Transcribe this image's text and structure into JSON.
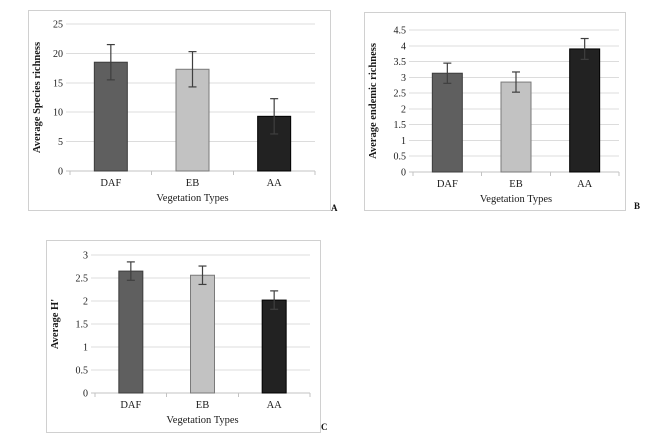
{
  "figure": {
    "background": "#ffffff",
    "panel_border_color": "#d0d0d0",
    "text_color": "#1a1a1a",
    "gridline_color": "#dcdcdc",
    "axis_color": "#c3c3c3",
    "error_bar_color": "#3f3f3f"
  },
  "chart_data": [
    {
      "type": "bar",
      "panel_label": "A",
      "ylabel": "Average Species richness",
      "xlabel": "Vegetation Types",
      "categories": [
        "DAF",
        "EB",
        "AA"
      ],
      "values": [
        18.5,
        17.3,
        9.3
      ],
      "errors": [
        3.0,
        3.0,
        3.0
      ],
      "ylim": [
        0,
        25
      ],
      "yticks": [
        "0",
        "5",
        "10",
        "15",
        "20",
        "25"
      ],
      "grid": true,
      "legend": "none",
      "bar_fills": [
        "#5f5f5f",
        "#c2c2c2",
        "#222222"
      ],
      "bar_strokes": [
        "#3d3d3d",
        "#7a7a7a",
        "#000000"
      ]
    },
    {
      "type": "bar",
      "panel_label": "B",
      "ylabel": "Average endemic richness",
      "xlabel": "Vegetation Types",
      "categories": [
        "DAF",
        "EB",
        "AA"
      ],
      "values": [
        3.13,
        2.85,
        3.9
      ],
      "errors": [
        0.32,
        0.32,
        0.33
      ],
      "ylim": [
        0,
        4.5
      ],
      "yticks": [
        "0",
        "0.5",
        "1",
        "1.5",
        "2",
        "2.5",
        "3",
        "3.5",
        "4",
        "4.5"
      ],
      "grid": true,
      "legend": "none",
      "bar_fills": [
        "#5f5f5f",
        "#c2c2c2",
        "#222222"
      ],
      "bar_strokes": [
        "#3d3d3d",
        "#7a7a7a",
        "#000000"
      ]
    },
    {
      "type": "bar",
      "panel_label": "C",
      "ylabel": "Average H'",
      "xlabel": "Vegetation Types",
      "categories": [
        "DAF",
        "EB",
        "AA"
      ],
      "values": [
        2.65,
        2.56,
        2.02
      ],
      "errors": [
        0.2,
        0.2,
        0.2
      ],
      "ylim": [
        0,
        3
      ],
      "yticks": [
        "0",
        "0.5",
        "1",
        "1.5",
        "2",
        "2.5",
        "3"
      ],
      "grid": true,
      "legend": "none",
      "bar_fills": [
        "#5f5f5f",
        "#c2c2c2",
        "#222222"
      ],
      "bar_strokes": [
        "#3d3d3d",
        "#7a7a7a",
        "#000000"
      ]
    }
  ]
}
